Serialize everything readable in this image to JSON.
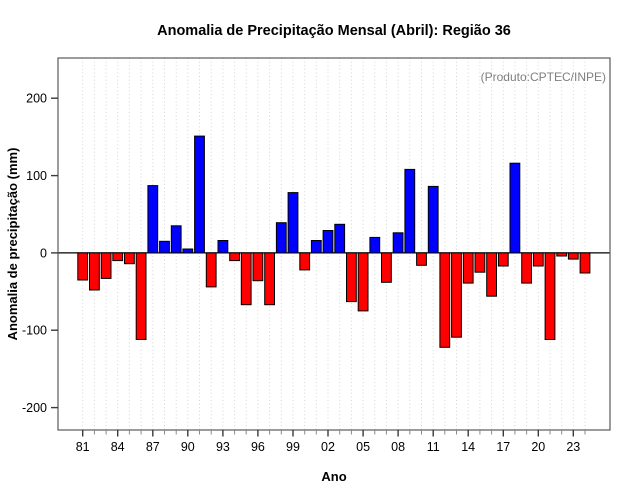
{
  "header": {
    "title": "Anomalia de Precipitação Mensal (Abril): Região 36"
  },
  "chart_data": {
    "type": "bar",
    "title": "Anomalia de Precipitação Mensal (Abril): Região 36",
    "annotation": "(Produto:CPTEC/INPE)",
    "xlabel": "Ano",
    "ylabel": "Anomalia de precipitação (mm)",
    "categories": [
      "81",
      "82",
      "83",
      "84",
      "85",
      "86",
      "87",
      "88",
      "89",
      "90",
      "91",
      "92",
      "93",
      "94",
      "95",
      "96",
      "97",
      "98",
      "99",
      "00",
      "01",
      "02",
      "03",
      "04",
      "05",
      "06",
      "07",
      "08",
      "09",
      "10",
      "11",
      "12",
      "13",
      "14",
      "15",
      "16",
      "17",
      "18",
      "19",
      "20",
      "21",
      "22",
      "23",
      "24"
    ],
    "values": [
      -35,
      -48,
      -33,
      -10,
      -14,
      -112,
      87,
      15,
      35,
      5,
      151,
      -44,
      16,
      -10,
      -67,
      -36,
      -67,
      39,
      78,
      -22,
      16,
      29,
      37,
      -63,
      -75,
      20,
      -38,
      26,
      108,
      -16,
      86,
      -122,
      -109,
      -39,
      -25,
      -56,
      -17,
      116,
      -39,
      -17,
      -112,
      -4,
      -8,
      -26
    ],
    "x_tick_labels": [
      "81",
      "84",
      "87",
      "90",
      "93",
      "96",
      "99",
      "02",
      "05",
      "08",
      "11",
      "14",
      "17",
      "20",
      "23"
    ],
    "yticks": [
      -200,
      -100,
      0,
      100,
      200
    ],
    "ylim": [
      -229,
      252
    ],
    "positive_color": "#0000ff",
    "negative_color": "#ff0000",
    "bar_border_color": "#000000",
    "grid": "vertical-dotted",
    "legend": "none"
  }
}
